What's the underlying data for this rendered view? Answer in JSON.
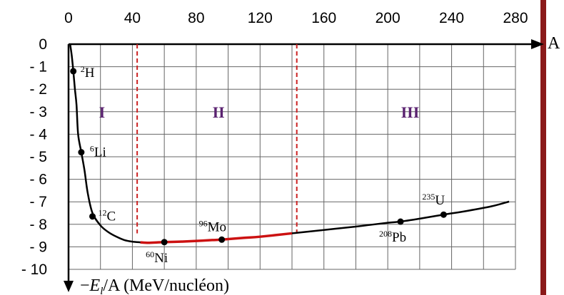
{
  "chart_data": {
    "type": "line",
    "xlabel": "A",
    "ylabel": "−E_l/A (MeV/nucléon)",
    "ylabel_parts": {
      "minus": "−",
      "symbol": "E",
      "sub": "l",
      "rest": "/A (MeV/nucléon)"
    },
    "xlim": [
      0,
      280
    ],
    "ylim": [
      -10,
      0
    ],
    "xticks": [
      0,
      40,
      80,
      120,
      160,
      200,
      240,
      280
    ],
    "yticks": [
      0,
      -1,
      -2,
      -3,
      -4,
      -5,
      -6,
      -7,
      -8,
      -9,
      -10
    ],
    "xtick_labels": [
      "0",
      "40",
      "80",
      "120",
      "160",
      "200",
      "240",
      "280"
    ],
    "ytick_labels": [
      "0",
      "- 1",
      "- 2",
      "- 3",
      "- 4",
      "- 5",
      "- 6",
      "- 7",
      "- 8",
      "- 9",
      "- 10"
    ],
    "grid": true,
    "curve": {
      "x": [
        1,
        2,
        3,
        4,
        5,
        6,
        8,
        10,
        12,
        15,
        20,
        25,
        30,
        35,
        40,
        45,
        50,
        56,
        60,
        70,
        80,
        90,
        96,
        110,
        120,
        140,
        160,
        180,
        200,
        208,
        220,
        235,
        250,
        265,
        276
      ],
      "y": [
        0,
        -0.5,
        -1.2,
        -2.0,
        -2.7,
        -4.0,
        -4.8,
        -5.6,
        -6.6,
        -7.5,
        -8.05,
        -8.35,
        -8.55,
        -8.7,
        -8.77,
        -8.8,
        -8.82,
        -8.8,
        -8.79,
        -8.77,
        -8.74,
        -8.7,
        -8.68,
        -8.6,
        -8.55,
        -8.4,
        -8.25,
        -8.1,
        -7.93,
        -7.88,
        -7.75,
        -7.57,
        -7.4,
        -7.2,
        -6.99
      ]
    },
    "highlight_range": [
      45,
      145
    ],
    "highlight_color": "#cc1111",
    "curve_color": "#000000",
    "divider_x": [
      43,
      143
    ],
    "divider_color": "#cc2222",
    "regions": [
      {
        "label": "I",
        "x": 21
      },
      {
        "label": "II",
        "x": 94
      },
      {
        "label": "III",
        "x": 214
      }
    ],
    "region_y": -3,
    "region_color": "#5a2270",
    "points": [
      {
        "mass": "2",
        "symbol": "H",
        "x": 3,
        "y": -1.2
      },
      {
        "mass": "6",
        "symbol": "Li",
        "x": 8,
        "y": -4.8
      },
      {
        "mass": "12",
        "symbol": "C",
        "x": 15,
        "y": -7.65
      },
      {
        "mass": "60",
        "symbol": "Ni",
        "x": 60,
        "y": -8.79
      },
      {
        "mass": "96",
        "symbol": "Mo",
        "x": 96,
        "y": -8.68
      },
      {
        "mass": "208",
        "symbol": "Pb",
        "x": 208,
        "y": -7.88
      },
      {
        "mass": "235",
        "symbol": "U",
        "x": 235,
        "y": -7.57
      }
    ],
    "side_bar_color": "#8b1a1a"
  }
}
